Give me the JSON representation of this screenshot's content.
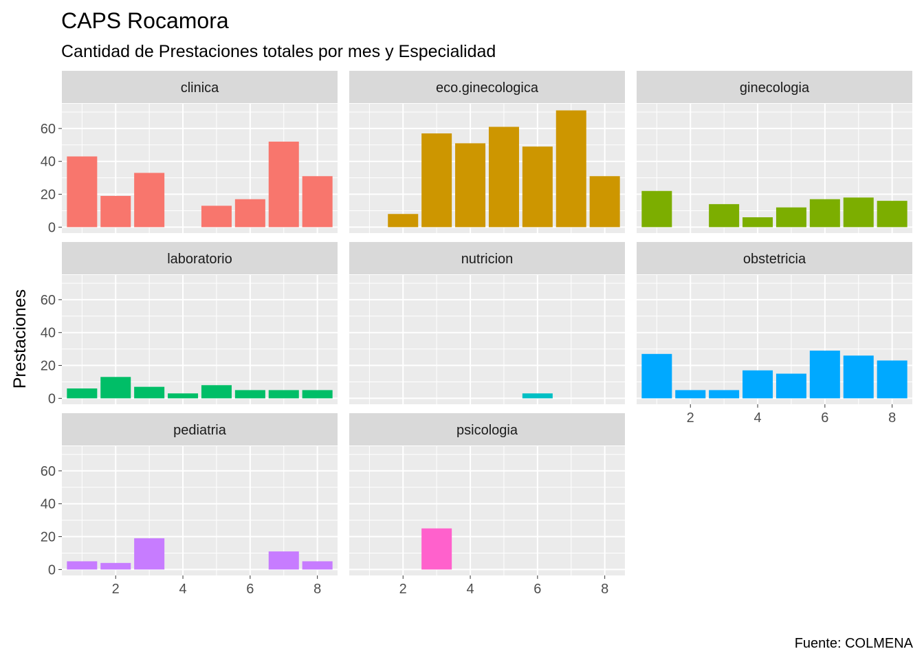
{
  "chart_data": {
    "type": "bar",
    "title": "CAPS Rocamora",
    "subtitle": "Cantidad de Prestaciones totales por mes y Especialidad",
    "ylabel": "Prestaciones",
    "xlabel": "",
    "caption": "Fuente: COLMENA",
    "x": [
      1,
      2,
      3,
      4,
      5,
      6,
      7,
      8
    ],
    "xlim": [
      0.4,
      8.6
    ],
    "ylim": [
      -3.6,
      75
    ],
    "x_ticks": [
      2,
      4,
      6,
      8
    ],
    "y_ticks": [
      0,
      20,
      40,
      60
    ],
    "grid": true,
    "legend": "none",
    "facet_columns": 3,
    "series": [
      {
        "name": "clinica",
        "color": "#F8766D",
        "values": [
          43,
          19,
          33,
          0,
          13,
          17,
          52,
          31
        ]
      },
      {
        "name": "eco.ginecologica",
        "color": "#CD9600",
        "values": [
          0,
          8,
          57,
          51,
          61,
          49,
          71,
          31
        ]
      },
      {
        "name": "ginecologia",
        "color": "#7CAE00",
        "values": [
          22,
          0,
          14,
          6,
          12,
          17,
          18,
          16
        ]
      },
      {
        "name": "laboratorio",
        "color": "#00BE67",
        "values": [
          6,
          13,
          7,
          3,
          8,
          5,
          5,
          5
        ]
      },
      {
        "name": "nutricion",
        "color": "#00BFC4",
        "values": [
          0,
          0,
          0,
          0,
          0,
          3,
          0,
          0
        ]
      },
      {
        "name": "obstetricia",
        "color": "#00A9FF",
        "values": [
          27,
          5,
          5,
          17,
          15,
          29,
          26,
          23
        ]
      },
      {
        "name": "pediatria",
        "color": "#C77CFF",
        "values": [
          5,
          4,
          19,
          0,
          0,
          0,
          11,
          5
        ]
      },
      {
        "name": "psicologia",
        "color": "#FF61CC",
        "values": [
          0,
          0,
          25,
          0,
          0,
          0,
          0,
          0
        ]
      }
    ]
  }
}
